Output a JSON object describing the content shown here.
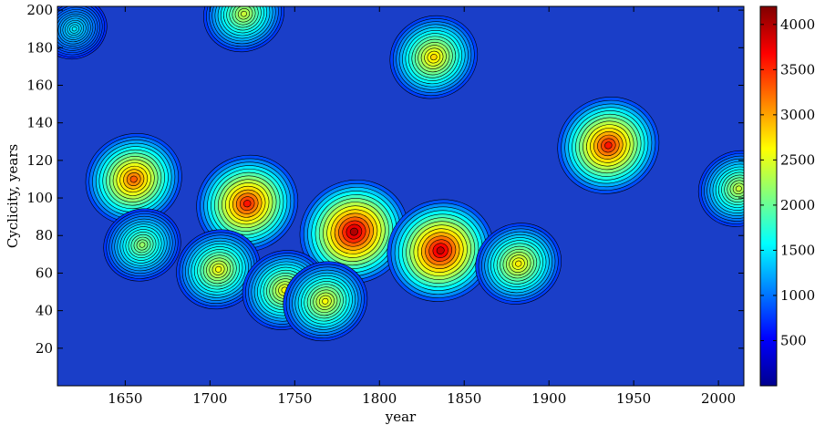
{
  "chart_data": {
    "type": "heatmap",
    "title": "",
    "xlabel": "year",
    "ylabel": "Cyclicity, years",
    "xlim": [
      1610,
      2015
    ],
    "ylim": [
      0,
      202
    ],
    "x_ticks": [
      1650,
      1700,
      1750,
      1800,
      1850,
      1900,
      1950,
      2000
    ],
    "y_ticks": [
      20,
      40,
      60,
      80,
      100,
      120,
      140,
      160,
      180,
      200
    ],
    "colorbar": {
      "colormap": "jet",
      "range": [
        0,
        4200
      ],
      "ticks": [
        500,
        1000,
        1500,
        2000,
        2500,
        3000,
        3500,
        4000
      ]
    },
    "contour_lines": true,
    "peaks": [
      {
        "year": 1655,
        "cycle": 110,
        "value": 3300
      },
      {
        "year": 1722,
        "cycle": 97,
        "value": 3600
      },
      {
        "year": 1785,
        "cycle": 82,
        "value": 4000
      },
      {
        "year": 1836,
        "cycle": 72,
        "value": 3900
      },
      {
        "year": 1935,
        "cycle": 128,
        "value": 3600
      },
      {
        "year": 1832,
        "cycle": 175,
        "value": 2800
      },
      {
        "year": 1705,
        "cycle": 62,
        "value": 2600
      },
      {
        "year": 1744,
        "cycle": 51,
        "value": 2600
      },
      {
        "year": 1768,
        "cycle": 45,
        "value": 2600
      },
      {
        "year": 1882,
        "cycle": 65,
        "value": 2700
      },
      {
        "year": 1660,
        "cycle": 75,
        "value": 2200
      },
      {
        "year": 1720,
        "cycle": 198,
        "value": 2400
      },
      {
        "year": 2012,
        "cycle": 105,
        "value": 2400
      },
      {
        "year": 1620,
        "cycle": 190,
        "value": 1500
      }
    ]
  }
}
